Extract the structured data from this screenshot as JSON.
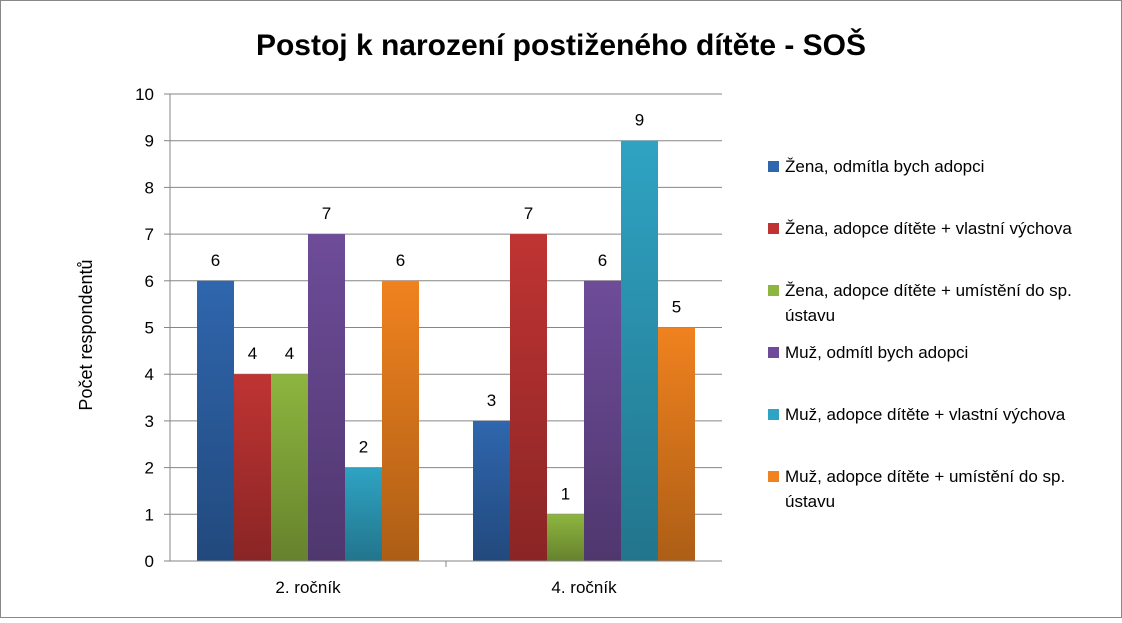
{
  "chart_data": {
    "type": "bar",
    "title": "Postoj k narození postiženého dítěte - SOŠ",
    "xlabel": "",
    "ylabel": "Počet respondentů",
    "ylim": [
      0,
      10
    ],
    "yticks": [
      0,
      1,
      2,
      3,
      4,
      5,
      6,
      7,
      8,
      9,
      10
    ],
    "grid": true,
    "legend_position": "right",
    "categories": [
      "2. ročník",
      "4. ročník"
    ],
    "series": [
      {
        "name": "Žena, odmítla bych adopci",
        "values": [
          6,
          3
        ],
        "color": "#2f66ad"
      },
      {
        "name": "Žena, adopce dítěte + vlastní výchova",
        "values": [
          4,
          7
        ],
        "color": "#bf3433"
      },
      {
        "name": "Žena, adopce dítěte + umístění do sp. ústavu",
        "values": [
          4,
          1
        ],
        "color": "#8db53f"
      },
      {
        "name": "Muž, odmítl bych adopci",
        "values": [
          7,
          6
        ],
        "color": "#6e4c99"
      },
      {
        "name": "Muž, adopce dítěte + vlastní výchova",
        "values": [
          2,
          9
        ],
        "color": "#2fa3c3"
      },
      {
        "name": "Muž, adopce dítěte + umístění do sp. ústavu",
        "values": [
          6,
          5
        ],
        "color": "#f0821f"
      }
    ]
  }
}
